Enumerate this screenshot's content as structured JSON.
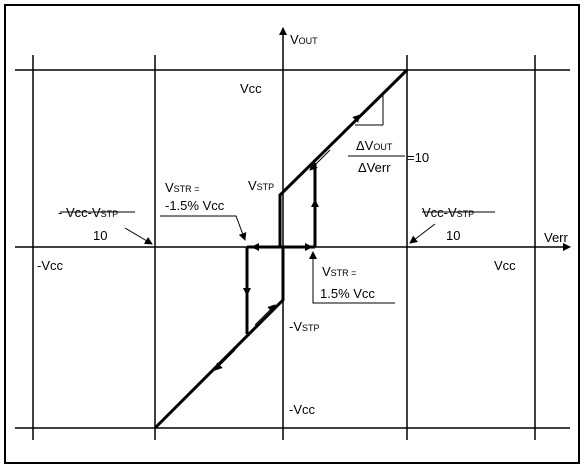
{
  "axes": {
    "y_label": [
      "V",
      "OUT"
    ],
    "x_label": "Verr"
  },
  "labels": {
    "vcc_top": "Vcc",
    "slope_num": [
      "ΔV",
      "OUT"
    ],
    "slope_den": "ΔVerr",
    "slope_eq": "=10",
    "vstp_pos": [
      "V",
      "STP"
    ],
    "vstr_neg": [
      "V",
      "STR ="
    ],
    "vstr_neg_value": "-1.5% Vcc",
    "left_frac_num": [
      "- Vcc-V",
      "STP"
    ],
    "left_frac_den": "10",
    "right_frac_num": [
      "Vcc-V",
      "STP"
    ],
    "right_frac_den": "10",
    "neg_vcc_x": "-Vcc",
    "pos_vcc_x": "Vcc",
    "vstr_pos": [
      "V",
      "STR ="
    ],
    "vstr_pos_value": "1.5% Vcc",
    "vstp_neg": [
      "-V",
      "STP"
    ],
    "vcc_bottom": "-Vcc"
  }
}
